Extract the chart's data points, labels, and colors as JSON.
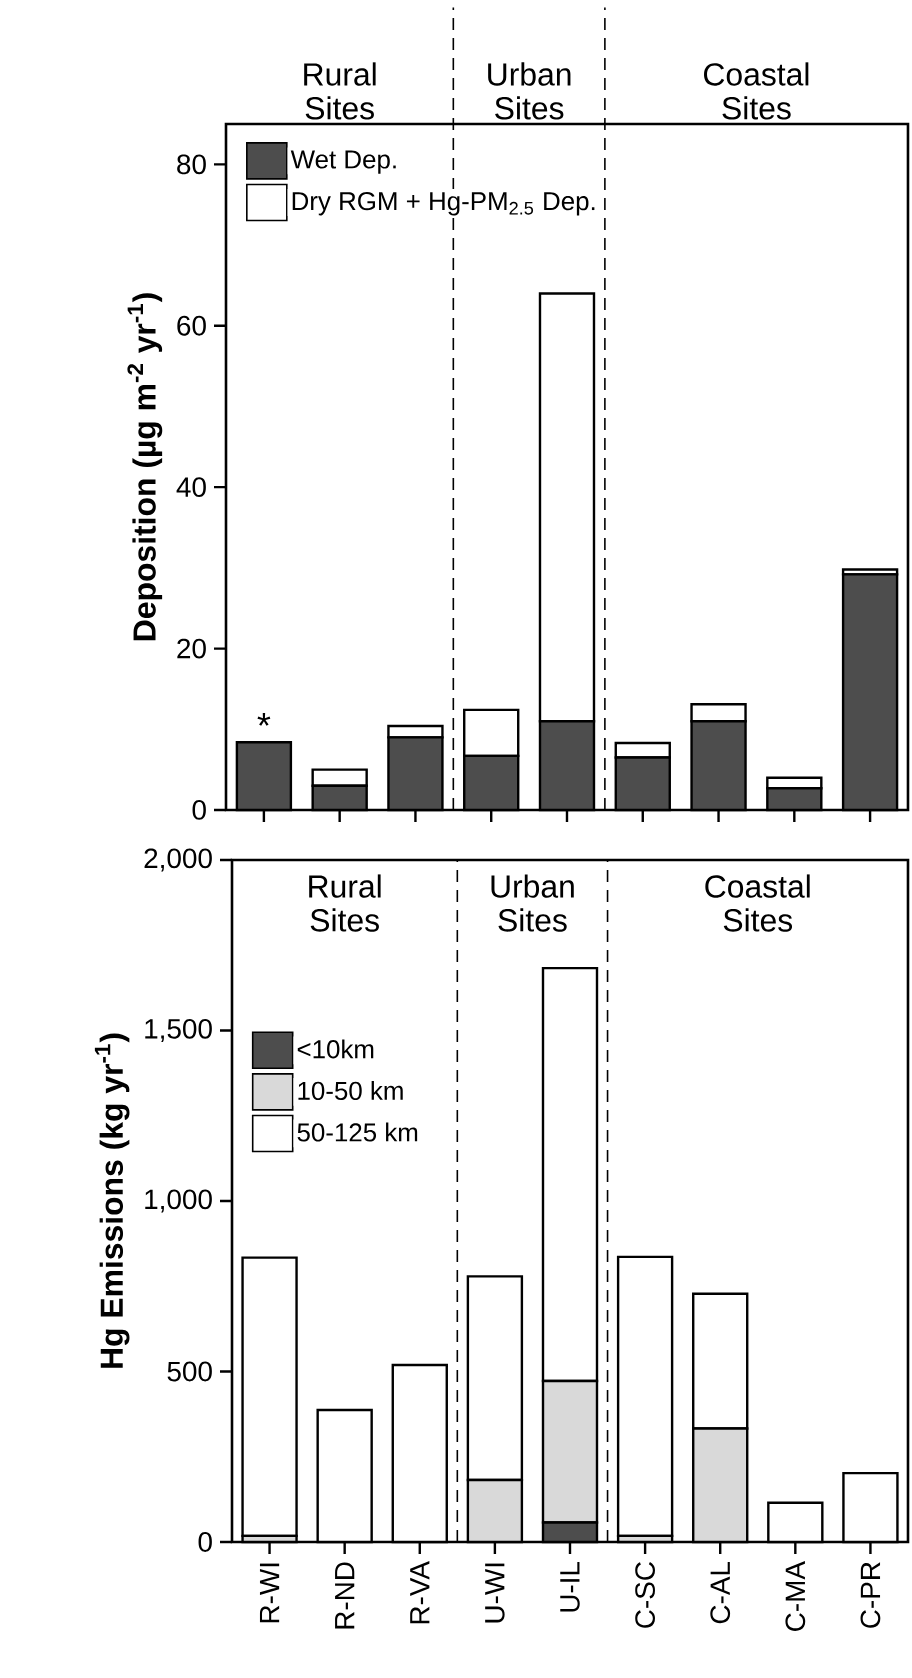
{
  "chart_data": [
    {
      "type": "bar",
      "stacked": true,
      "categories": [
        null,
        null,
        null,
        null,
        null,
        null,
        null,
        null,
        null
      ],
      "series": [
        {
          "name": "Wet Dep.",
          "color": "#4d4d4d",
          "values": [
            8.4,
            3.0,
            9.0,
            6.7,
            11.0,
            6.5,
            11.0,
            2.7,
            29.2
          ]
        },
        {
          "name": "Dry RGM + Hg-PM$_{2.5}$ Dep.",
          "color": "#ffffff",
          "values": [
            0,
            2.0,
            1.4,
            5.7,
            53.0,
            1.8,
            2.1,
            1.3,
            0.6
          ]
        }
      ],
      "ylabel": "Deposition (µg m$^{-2}$ yr$^{-1}$)",
      "ylim": [
        0,
        85
      ],
      "yticks": [
        0,
        20,
        40,
        60,
        80
      ],
      "legend": "top left",
      "tick_labels": "y",
      "annotations": [
        "Rural Sites",
        "Urban Sites",
        "Coastal Sites",
        {
          "text": "*",
          "y": 8.4
        }
      ]
    },
    {
      "type": "bar",
      "stacked": true,
      "categories": [
        "R-WI",
        "R-ND",
        "R-VA",
        "U-WI",
        "U-IL",
        "C-SC",
        "C-AL",
        "C-MA",
        "C-PR"
      ],
      "series": [
        {
          "name": "<10km",
          "color": "#4d4d4d",
          "values": [
            0,
            0,
            0,
            0,
            57,
            0,
            0,
            0,
            0
          ]
        },
        {
          "name": "10-50 km",
          "color": "#d9d9d9",
          "values": [
            18,
            0,
            0,
            182,
            415,
            18,
            333,
            0,
            0
          ]
        },
        {
          "name": "50-125 km",
          "color": "#ffffff",
          "values": [
            816,
            387,
            519,
            597,
            1211,
            818,
            395,
            115,
            202
          ]
        }
      ],
      "ylabel": "Hg Emissions (kg yr$^{-1}$)",
      "ylim": [
        0,
        2000
      ],
      "yticks": [
        0,
        500,
        {
          "value": 1000,
          "label": "1,000"
        },
        {
          "value": 1500,
          "label": "1,500"
        },
        {
          "value": 2000,
          "label": "2,000"
        }
      ],
      "legend": "left",
      "annotations": [
        "Rural Sites",
        "Urban Sites",
        "Coastal Sites"
      ]
    }
  ]
}
